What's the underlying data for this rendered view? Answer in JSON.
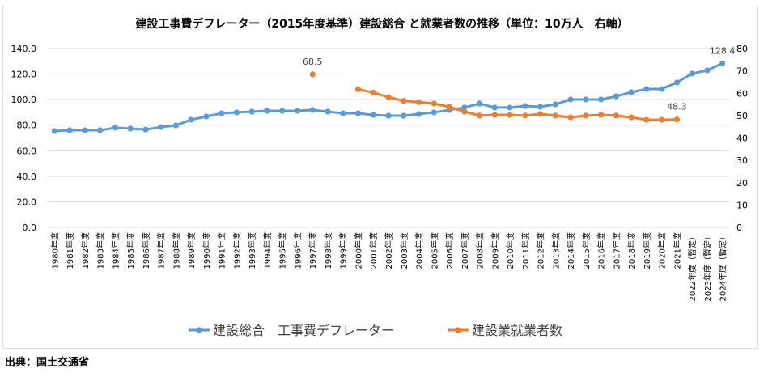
{
  "source_note": "出典：国土交通省",
  "chart_data": {
    "type": "line",
    "title": "建設工事費デフレーター（2015年度基準）建設総合 と就業者数の推移（単位：10万人　右軸）",
    "xlabel": "",
    "ylabel": "",
    "y2label": "",
    "categories": [
      "1980年度",
      "1981年度",
      "1982年度",
      "1983年度",
      "1984年度",
      "1985年度",
      "1986年度",
      "1987年度",
      "1988年度",
      "1989年度",
      "1990年度",
      "1991年度",
      "1992年度",
      "1993年度",
      "1994年度",
      "1995年度",
      "1996年度",
      "1997年度",
      "1998年度",
      "1999年度",
      "2000年度",
      "2001年度",
      "2002年度",
      "2003年度",
      "2004年度",
      "2005年度",
      "2006年度",
      "2007年度",
      "2008年度",
      "2009年度",
      "2010年度",
      "2011年度",
      "2012年度",
      "2013年度",
      "2014年度",
      "2015年度",
      "2016年度",
      "2017年度",
      "2018年度",
      "2019年度",
      "2020年度",
      "2021年度",
      "2022年度（暫定）",
      "2023年度（暫定）",
      "2024年度（暫定）"
    ],
    "ylim": [
      0,
      140
    ],
    "y_ticks": [
      "0.0",
      "20.0",
      "40.0",
      "60.0",
      "80.0",
      "100.0",
      "120.0",
      "140.0"
    ],
    "y2lim": [
      0,
      80
    ],
    "y2_ticks": [
      "0",
      "10",
      "20",
      "30",
      "40",
      "50",
      "60",
      "70",
      "80"
    ],
    "grid": true,
    "legend_position": "bottom",
    "series": [
      {
        "name": "建設総合　工事費デフレーター",
        "axis": "left",
        "color": "#5b9bd5",
        "values": [
          75.4,
          76.0,
          76.0,
          76.0,
          78.0,
          77.3,
          76.6,
          78.5,
          79.8,
          84.3,
          86.8,
          89.3,
          90.0,
          90.6,
          91.2,
          91.2,
          91.2,
          91.9,
          90.6,
          89.3,
          89.3,
          88.0,
          87.4,
          87.4,
          88.7,
          90.0,
          91.9,
          93.8,
          96.9,
          93.8,
          93.8,
          95.0,
          94.4,
          96.3,
          100.1,
          100.1,
          100.1,
          102.6,
          105.8,
          108.3,
          108.3,
          113.4,
          120.4,
          122.9,
          128.4
        ],
        "labels": [
          {
            "index": 44,
            "text": "128.4"
          }
        ]
      },
      {
        "name": "建設業就業者数",
        "axis": "right",
        "color": "#ed7d31",
        "values": [
          null,
          null,
          null,
          null,
          null,
          null,
          null,
          null,
          null,
          null,
          null,
          null,
          null,
          null,
          null,
          null,
          null,
          68.5,
          null,
          null,
          61.8,
          60.3,
          58.2,
          56.6,
          56.0,
          55.4,
          53.9,
          51.8,
          50.0,
          50.3,
          50.3,
          50.0,
          50.7,
          50.0,
          49.2,
          50.0,
          50.3,
          50.0,
          49.2,
          48.1,
          48.1,
          48.3,
          null,
          null,
          null
        ],
        "labels": [
          {
            "index": 17,
            "text": "68.5"
          },
          {
            "index": 41,
            "text": "48.3"
          }
        ]
      }
    ]
  }
}
